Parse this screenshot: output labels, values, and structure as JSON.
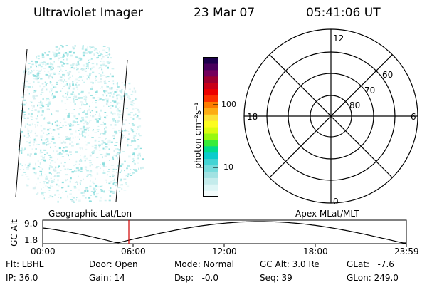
{
  "header": {
    "instrument": "Ultraviolet Imager",
    "date": "23 Mar 07",
    "time": "05:41:06 UT"
  },
  "colorbar": {
    "units_label": "photon cm⁻²s⁻¹",
    "tick_labels": [
      "100",
      "10"
    ],
    "colors": [
      "#f4fcfc",
      "#def6f6",
      "#c4ecec",
      "#a2e2e2",
      "#78dcdc",
      "#44d4d4",
      "#0ccccc",
      "#00dc8c",
      "#38ec38",
      "#98f810",
      "#dcfc10",
      "#fcfc20",
      "#fce038",
      "#fcac14",
      "#fc7c00",
      "#fc3000",
      "#ec0000",
      "#c80018",
      "#9c0030",
      "#74005c",
      "#48005c",
      "#1c004c"
    ]
  },
  "polar_plot": {
    "mlt_labels": {
      "top": "12",
      "bottom": "0",
      "left": "18",
      "right": "6"
    },
    "lat_labels": [
      "60",
      "70",
      "80"
    ]
  },
  "timeline": {
    "left_title": "Geographic Lat/Lon",
    "right_title": "Apex MLat/MLT",
    "ylabel": "GC Alt",
    "ymax_label": "9.0",
    "ymin_label": "1.8",
    "time_ticks": [
      "00:00",
      "06:00",
      "12:00",
      "18:00",
      "23:59"
    ],
    "marker_time": "05:41"
  },
  "status": {
    "flt": "Flt: LBHL",
    "ip": "IP: 36.0",
    "door": "Door: Open",
    "gain": "Gain: 14",
    "mode": "Mode: Normal",
    "dsp": "Dsp:   -0.0",
    "gc_alt": "GC Alt: 3.0 Re",
    "seq": "Seq: 39",
    "glat": "GLat:   -7.6",
    "glon": "GLon: 249.0"
  }
}
